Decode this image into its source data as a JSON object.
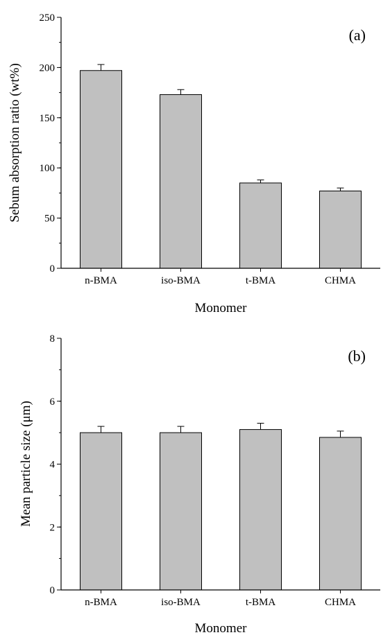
{
  "chart_data": [
    {
      "type": "bar",
      "panel_label": "(a)",
      "categories": [
        "n-BMA",
        "iso-BMA",
        "t-BMA",
        "CHMA"
      ],
      "values": [
        197,
        173,
        85,
        77
      ],
      "errors": [
        6,
        5,
        3,
        3
      ],
      "xlabel": "Monomer",
      "ylabel": "Sebum absorption ratio (wt%)",
      "ylim": [
        0,
        250
      ],
      "yticks": [
        "0",
        "50",
        "100",
        "150",
        "200",
        "250"
      ],
      "ytick_values": [
        0,
        50,
        100,
        150,
        200,
        250
      ],
      "yminor_step": 25,
      "grid": false,
      "legend": "none",
      "bar_color": "#c0c0c0",
      "edge_color": "#000000"
    },
    {
      "type": "bar",
      "panel_label": "(b)",
      "categories": [
        "n-BMA",
        "iso-BMA",
        "t-BMA",
        "CHMA"
      ],
      "values": [
        5.0,
        5.0,
        5.1,
        4.85
      ],
      "errors": [
        0.2,
        0.2,
        0.2,
        0.2
      ],
      "xlabel": "Monomer",
      "ylabel": "Mean particle size (μm)",
      "ylim": [
        0,
        8
      ],
      "yticks": [
        "0",
        "2",
        "4",
        "6",
        "8"
      ],
      "ytick_values": [
        0,
        2,
        4,
        6,
        8
      ],
      "yminor_step": 1,
      "grid": false,
      "legend": "none",
      "bar_color": "#c0c0c0",
      "edge_color": "#000000"
    }
  ]
}
